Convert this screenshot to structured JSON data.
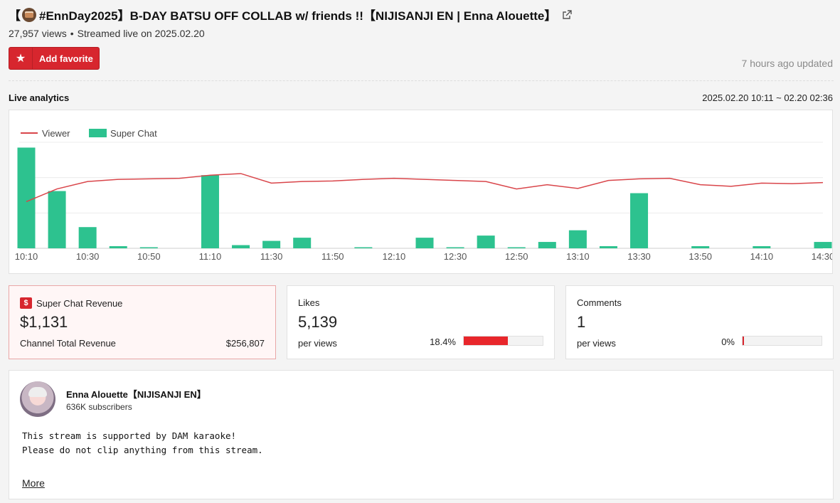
{
  "video": {
    "title_prefix": "【",
    "title_main": " #EnnDay2025】B-DAY BATSU OFF COLLAB w/ friends !!【NIJISANJI EN | Enna Alouette】",
    "views": "27,957 views",
    "streamed": "Streamed live on 2025.02.20"
  },
  "favorite": {
    "label": "Add favorite"
  },
  "updated": "7 hours ago updated",
  "analytics": {
    "label": "Live analytics",
    "range": "2025.02.20 10:11 ~ 02.20 02:36"
  },
  "chart_data": {
    "type": "bar+line",
    "legend": [
      "Viewer",
      "Super Chat"
    ],
    "legend_placement": "top-left",
    "x_labels": [
      "10:10",
      "10:30",
      "10:50",
      "11:10",
      "11:30",
      "11:50",
      "12:10",
      "12:30",
      "12:50",
      "13:10",
      "13:30",
      "13:50",
      "14:10",
      "14:30"
    ],
    "x": [
      "10:10",
      "10:20",
      "10:30",
      "10:40",
      "10:50",
      "11:00",
      "11:10",
      "11:20",
      "11:30",
      "11:40",
      "11:50",
      "12:00",
      "12:10",
      "12:20",
      "12:30",
      "12:40",
      "12:50",
      "13:00",
      "13:10",
      "13:20",
      "13:30",
      "13:40",
      "13:50",
      "14:00",
      "14:10",
      "14:20",
      "14:30"
    ],
    "series": [
      {
        "name": "Super Chat",
        "type": "bar",
        "color": "#2dc28f",
        "values": [
          95,
          54,
          20,
          2,
          1,
          0,
          69,
          3,
          7,
          10,
          0,
          1,
          0,
          10,
          1,
          12,
          1,
          6,
          17,
          2,
          52,
          0,
          2,
          0,
          2,
          0,
          6
        ]
      },
      {
        "name": "Viewer",
        "type": "line",
        "color": "#d9454a",
        "values": [
          44,
          56,
          63,
          65,
          65.5,
          66,
          69,
          70.5,
          61.5,
          63,
          63.5,
          65,
          66,
          65,
          64,
          63,
          56,
          60,
          56.5,
          64,
          65.5,
          66,
          60,
          58.5,
          61.5,
          61,
          62
        ]
      }
    ],
    "bar_max": 100,
    "line_max": 100,
    "grid": true
  },
  "cards": {
    "superchat": {
      "title": "Super Chat Revenue",
      "value": "$1,131",
      "sub": "Channel Total Revenue",
      "sub_value": "$256,807"
    },
    "likes": {
      "title": "Likes",
      "value": "5,139",
      "sub": "per views",
      "pct": "18.4%",
      "pct_value": 18.4
    },
    "comments": {
      "title": "Comments",
      "value": "1",
      "sub": "per views",
      "pct": "0%",
      "pct_value": 0
    }
  },
  "bar_scale": {
    "likes_full_pct": 32.8
  },
  "channel": {
    "name": "Enna Alouette【NIJISANJI EN】",
    "subscribers": "636K subscribers",
    "description": "This stream is supported by DAM karaoke!\nPlease do not clip anything from this stream.",
    "more": "More"
  }
}
